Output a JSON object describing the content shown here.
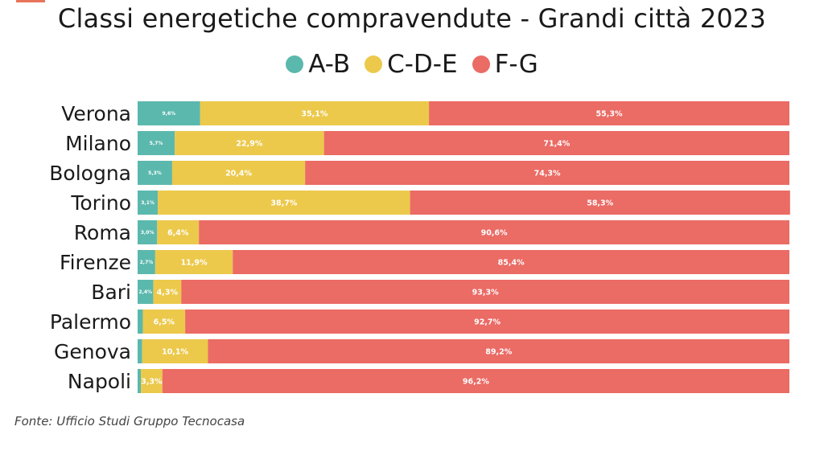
{
  "title": "Classi energetiche compravendute - Grandi città 2023",
  "source": "Fonte: Ufficio Studi Gruppo Tecnocasa",
  "colors": {
    "A-B": "#5bb8ad",
    "C-D-E": "#ecc94b",
    "F-G": "#eb6b65",
    "accent": "#e8735a"
  },
  "legend": [
    {
      "label": "A-B",
      "color": "#5bb8ad"
    },
    {
      "label": "C-D-E",
      "color": "#ecc94b"
    },
    {
      "label": "F-G",
      "color": "#eb6b65"
    }
  ],
  "chart_data": {
    "type": "bar",
    "orientation": "horizontal",
    "stacked": true,
    "categories": [
      "Verona",
      "Milano",
      "Bologna",
      "Torino",
      "Roma",
      "Firenze",
      "Bari",
      "Palermo",
      "Genova",
      "Napoli"
    ],
    "series": [
      {
        "name": "A-B",
        "color": "#5bb8ad",
        "values": [
          9.6,
          5.7,
          5.3,
          3.1,
          3.0,
          2.7,
          2.4,
          0.8,
          0.7,
          0.5
        ],
        "labels": [
          "9,6%",
          "5,7%",
          "5,3%",
          "3,1%",
          "3,0%",
          "2,7%",
          "2,4%",
          "",
          "",
          ""
        ]
      },
      {
        "name": "C-D-E",
        "color": "#ecc94b",
        "values": [
          35.1,
          22.9,
          20.4,
          38.7,
          6.4,
          11.9,
          4.3,
          6.5,
          10.1,
          3.3
        ],
        "labels": [
          "35,1%",
          "22,9%",
          "20,4%",
          "38,7%",
          "6,4%",
          "11,9%",
          "4,3%",
          "6,5%",
          "10,1%",
          "3,3%"
        ]
      },
      {
        "name": "F-G",
        "color": "#eb6b65",
        "values": [
          55.3,
          71.4,
          74.3,
          58.3,
          90.6,
          85.4,
          93.3,
          92.7,
          89.2,
          96.2
        ],
        "labels": [
          "55,3%",
          "71,4%",
          "74,3%",
          "58,3%",
          "90,6%",
          "85,4%",
          "93,3%",
          "92,7%",
          "89,2%",
          "96,2%"
        ]
      }
    ],
    "title": "Classi energetiche compravendute - Grandi città 2023",
    "xlabel": "",
    "ylabel": "",
    "xlim": [
      0,
      100
    ],
    "grid": false,
    "legend_position": "top-center"
  }
}
